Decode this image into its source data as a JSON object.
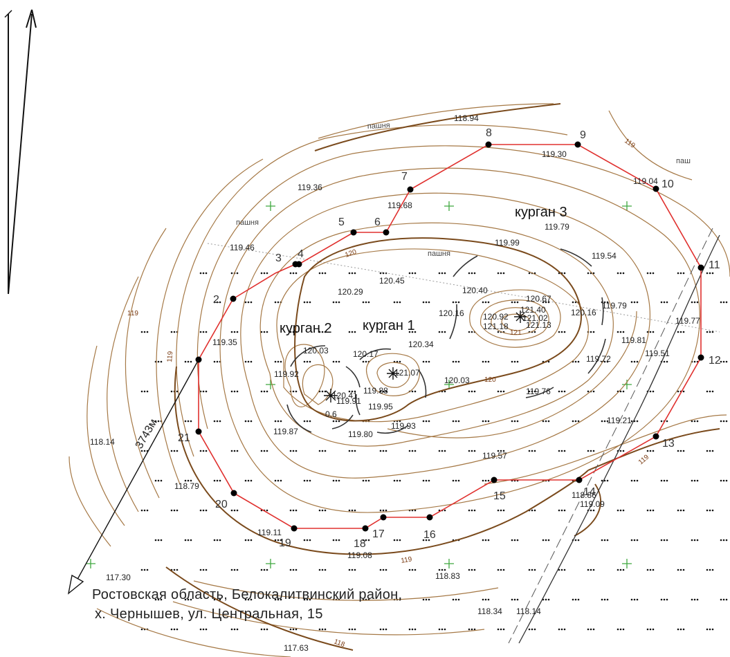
{
  "boundary": {
    "points": [
      {
        "id": "2",
        "label": "2"
      },
      {
        "id": "3",
        "label": "3"
      },
      {
        "id": "4",
        "label": "4"
      },
      {
        "id": "5",
        "label": "5"
      },
      {
        "id": "6",
        "label": "6"
      },
      {
        "id": "7",
        "label": "7"
      },
      {
        "id": "8",
        "label": "8"
      },
      {
        "id": "9",
        "label": "9"
      },
      {
        "id": "10",
        "label": "10"
      },
      {
        "id": "11",
        "label": "11"
      },
      {
        "id": "12",
        "label": "12"
      },
      {
        "id": "13",
        "label": "13"
      },
      {
        "id": "14",
        "label": "14"
      },
      {
        "id": "15",
        "label": "15"
      },
      {
        "id": "16",
        "label": "16"
      },
      {
        "id": "17",
        "label": "17"
      },
      {
        "id": "18",
        "label": "18"
      },
      {
        "id": "19",
        "label": "19"
      },
      {
        "id": "20",
        "label": "20"
      },
      {
        "id": "21",
        "label": "21"
      }
    ],
    "color": "#e0302e"
  },
  "elevations": [
    "118.94",
    "119.30",
    "119.04",
    "119.36",
    "119.68",
    "119.79",
    "119.46",
    "119.99",
    "119.54",
    "120.45",
    "120.29",
    "120.40",
    "120.67",
    "121.40",
    "120.16",
    "120.92",
    "121.02",
    "121.18",
    "121.13",
    "119.79",
    "120.16",
    "119.77",
    "119.35",
    "119.81",
    "119.51",
    "119.72",
    "120.03",
    "120.17",
    "120.34",
    "121.07",
    "119.92",
    "120.41",
    "119.88",
    "120.03",
    "119.76",
    "119.91",
    "119.95",
    "119.87",
    "119.80",
    "119.93",
    "119.21",
    "118.14",
    "119.57",
    "118.79",
    "118.86",
    "119.09",
    "119.11",
    "119.08",
    "117.30",
    "118.83",
    "118.34",
    "118.14",
    "117.63",
    "0.6"
  ],
  "mounds": [
    "курган 1",
    "курган 2",
    "курган 3"
  ],
  "land_use": [
    "пашня",
    "пашня",
    "пашня",
    "пашня",
    "паш"
  ],
  "contour_labels": [
    "119",
    "120",
    "120",
    "119",
    "119",
    "119",
    "121",
    "119",
    "118"
  ],
  "distance_label": "3743м",
  "address": {
    "line1": "Ростовская область, Белокалитвинский район,",
    "line2": "х. Чернышев, ул. Центральная, 15"
  },
  "colors": {
    "boundary": "#e0302e",
    "contour_thin": "#a57845",
    "contour_thick": "#7a4a1c",
    "mound_arc": "#333333",
    "grid_cross": "#3fa83f"
  }
}
